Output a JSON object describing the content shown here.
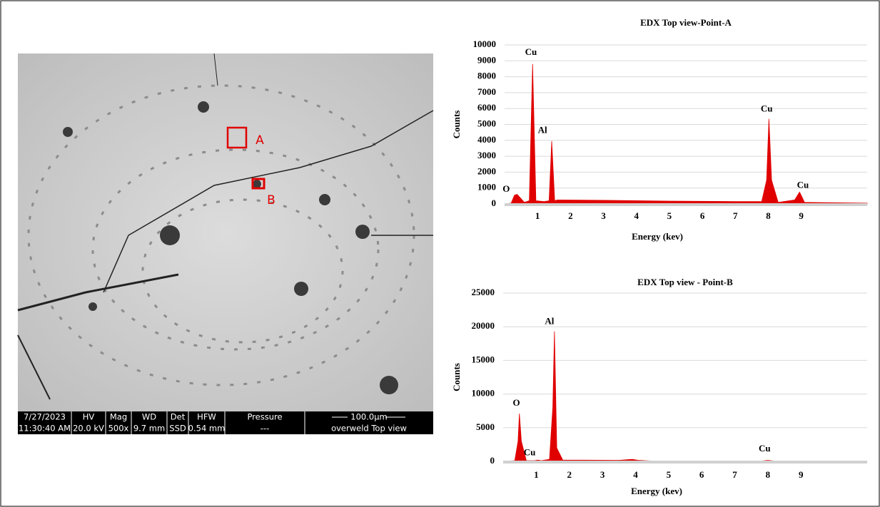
{
  "sem_image": {
    "markers": [
      "A",
      "B"
    ],
    "info_bar": [
      [
        "7/27/2023",
        "11:30:40 AM"
      ],
      [
        "HV",
        "20.0 kV"
      ],
      [
        "Mag",
        "500x"
      ],
      [
        "WD",
        "9.7 mm"
      ],
      [
        "Det",
        "SSD"
      ],
      [
        "HFW",
        "0.54 mm"
      ],
      [
        "Pressure",
        "---"
      ],
      [
        "100.0µm",
        "overweld Top view"
      ]
    ]
  },
  "chart_data": [
    {
      "type": "area",
      "title": "EDX Top view-Point-A",
      "x_label": "Energy (kev)",
      "y_label": "Counts",
      "color": "#e00000",
      "x": [
        0,
        0.2,
        0.3,
        0.38,
        0.6,
        0.75,
        0.85,
        0.95,
        1.2,
        1.35,
        1.43,
        1.52,
        1.6,
        3,
        5,
        7,
        7.8,
        7.95,
        8.02,
        8.1,
        8.3,
        8.8,
        8.95,
        9.1,
        11
      ],
      "values": [
        0,
        50,
        550,
        600,
        100,
        200,
        8800,
        200,
        150,
        200,
        3950,
        200,
        250,
        230,
        180,
        150,
        150,
        1500,
        5350,
        1500,
        100,
        250,
        750,
        100,
        50
      ],
      "xlim": [
        0,
        11
      ],
      "xticks": [
        1,
        2,
        3,
        4,
        5,
        6,
        7,
        8,
        9
      ],
      "ylim": [
        0,
        10000
      ],
      "yticks": [
        0,
        1000,
        2000,
        3000,
        4000,
        5000,
        6000,
        7000,
        8000,
        9000,
        10000
      ],
      "grid": true,
      "annotations": [
        {
          "text": "O",
          "x": 0.05,
          "y": 900
        },
        {
          "text": "Cu",
          "x": 0.8,
          "y": 9500
        },
        {
          "text": "Al",
          "x": 1.15,
          "y": 4600
        },
        {
          "text": "Cu",
          "x": 7.95,
          "y": 5950
        },
        {
          "text": "Cu",
          "x": 9.05,
          "y": 1150
        }
      ]
    },
    {
      "type": "area",
      "title": "EDX Top view - Point-B",
      "x_label": "Energy (kev)",
      "y_label": "Counts",
      "color": "#e00000",
      "x": [
        0,
        0.35,
        0.45,
        0.49,
        0.55,
        0.7,
        0.95,
        1.05,
        1.15,
        1.4,
        1.5,
        1.55,
        1.62,
        1.8,
        3.5,
        3.9,
        4.1,
        4.5,
        7.8,
        8.0,
        8.2,
        11
      ],
      "values": [
        0,
        100,
        3000,
        7100,
        3000,
        100,
        100,
        200,
        100,
        300,
        8000,
        19300,
        2000,
        200,
        150,
        300,
        150,
        50,
        50,
        150,
        50,
        0
      ],
      "xlim": [
        0,
        11
      ],
      "xticks": [
        1,
        2,
        3,
        4,
        5,
        6,
        7,
        8,
        9
      ],
      "ylim": [
        0,
        25000
      ],
      "yticks": [
        0,
        5000,
        10000,
        15000,
        20000,
        25000
      ],
      "grid": true,
      "annotations": [
        {
          "text": "O",
          "x": 0.4,
          "y": 8600
        },
        {
          "text": "Cu",
          "x": 0.8,
          "y": 1200
        },
        {
          "text": "Al",
          "x": 1.4,
          "y": 20700
        },
        {
          "text": "Cu",
          "x": 7.9,
          "y": 1800
        }
      ]
    }
  ]
}
